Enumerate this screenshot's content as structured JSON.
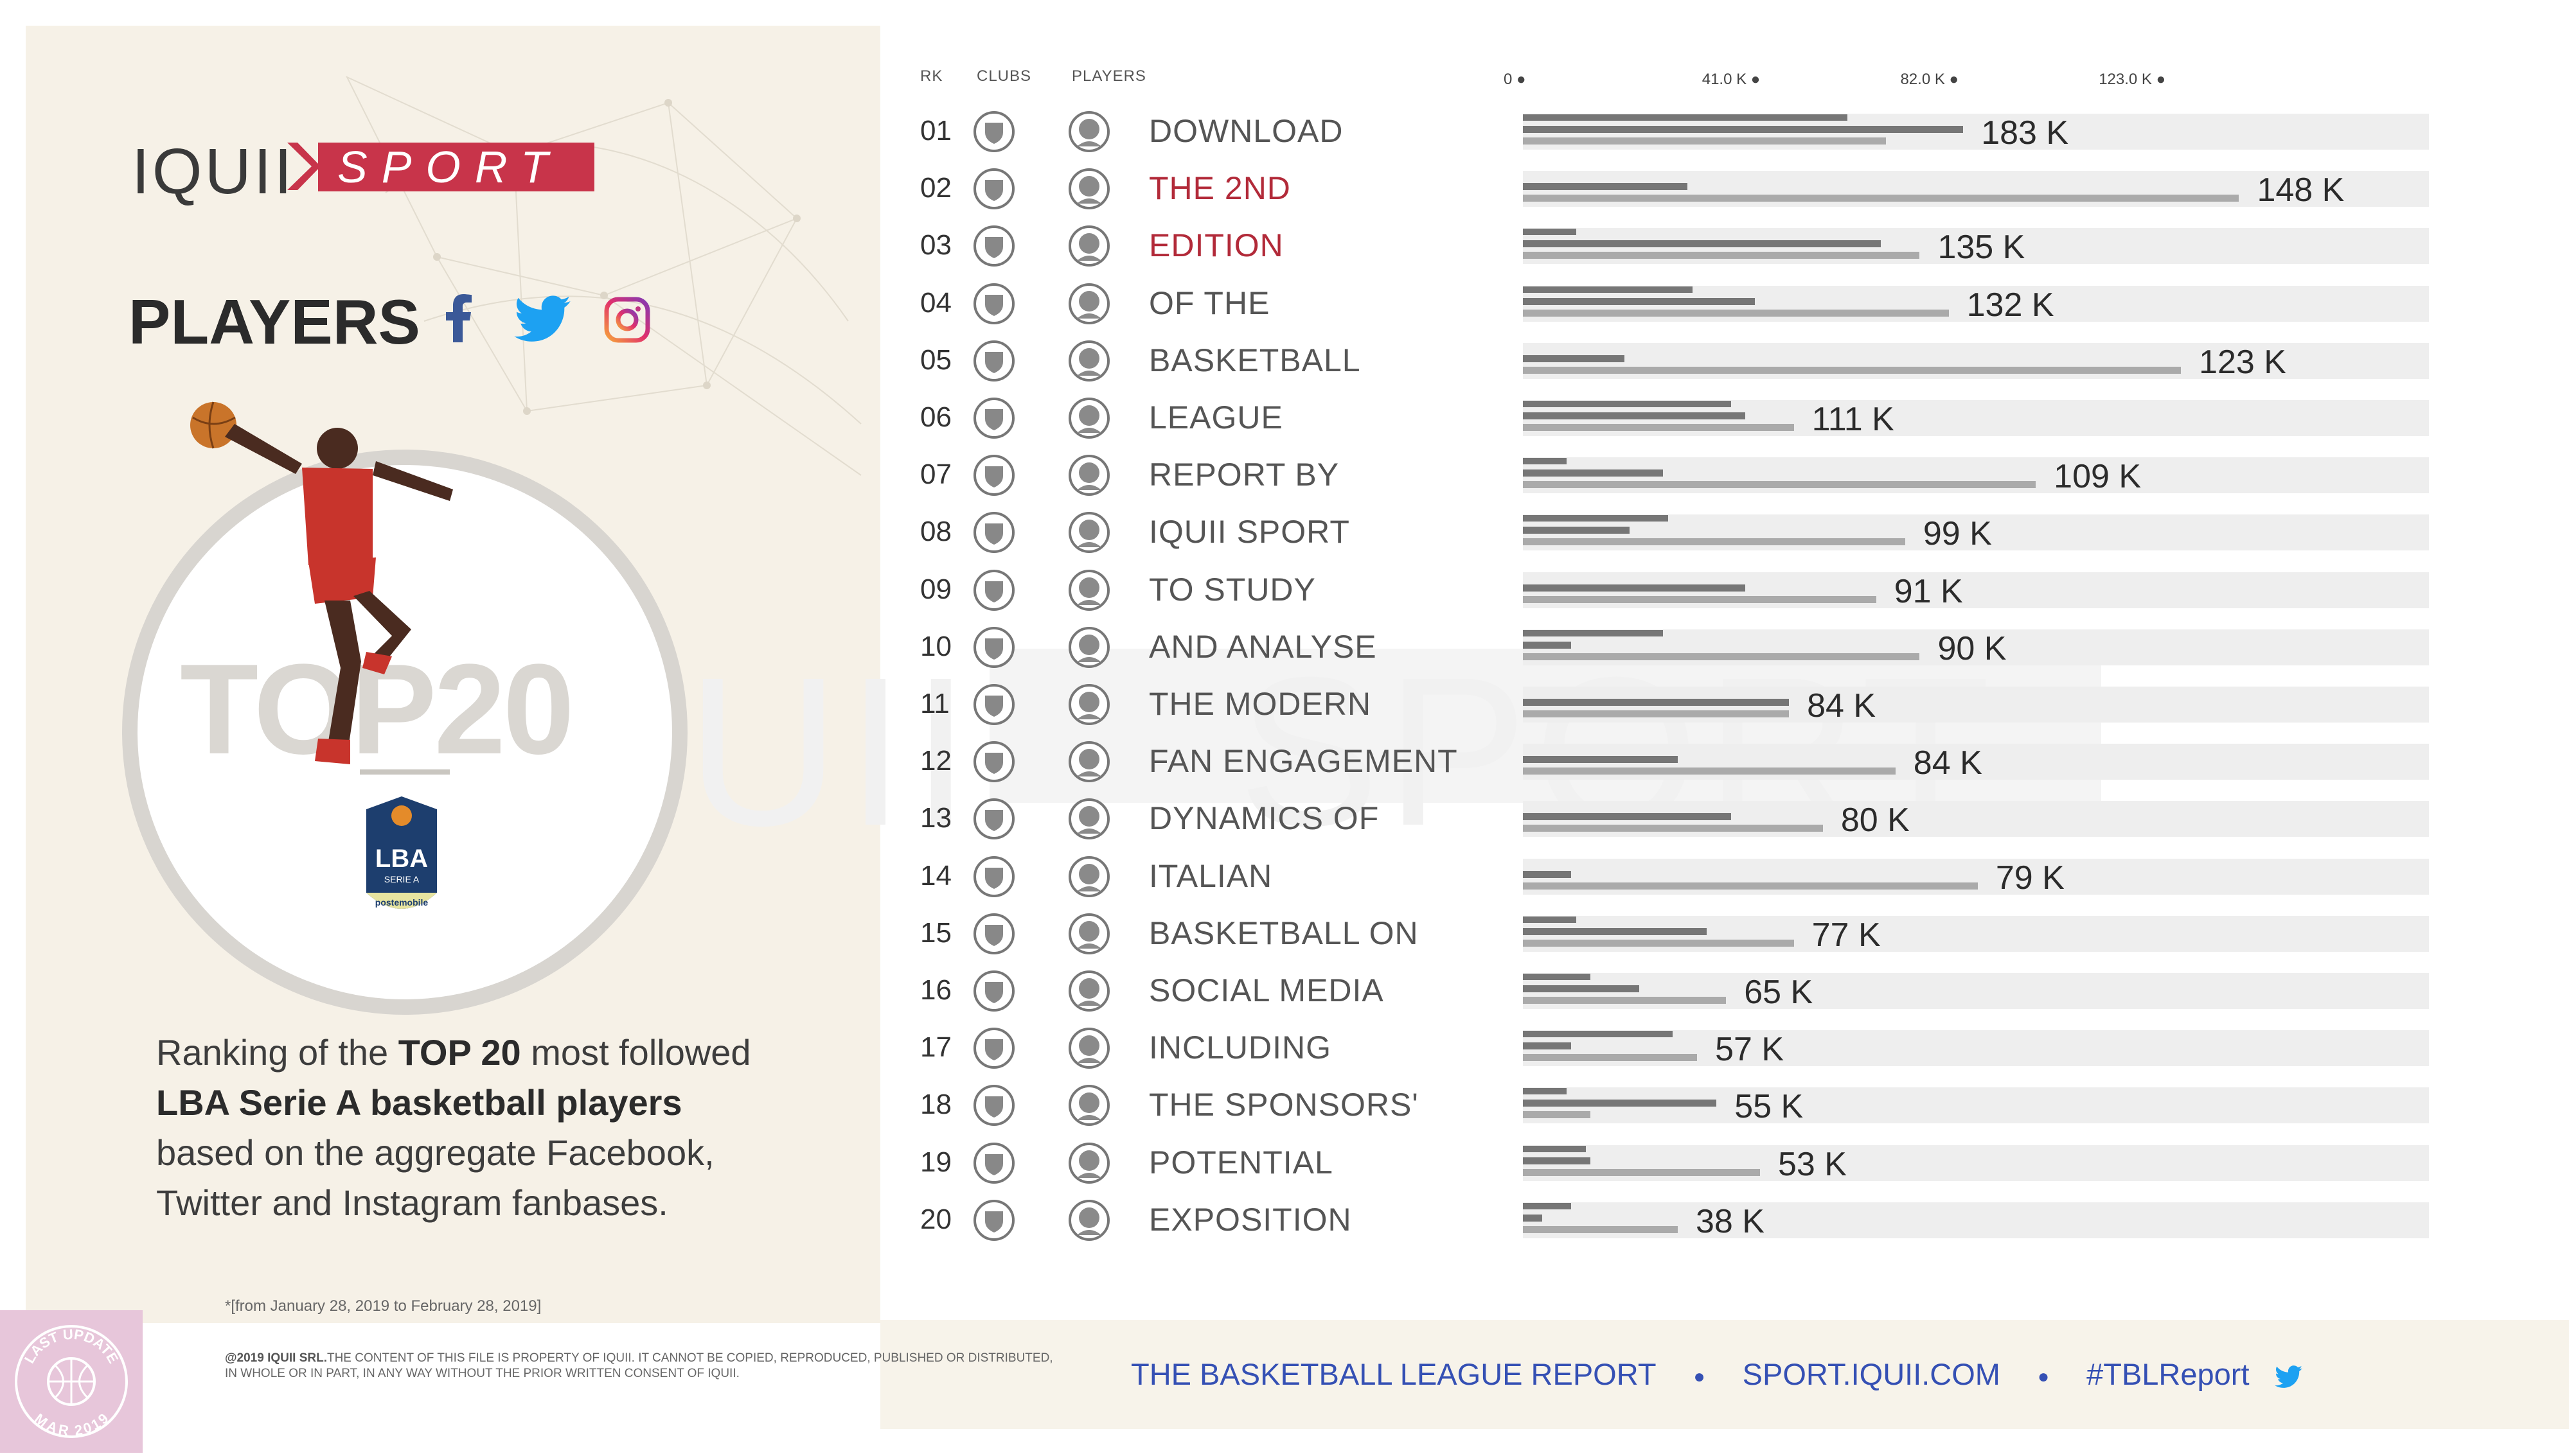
{
  "brand": {
    "left": "IQUII",
    "right": "SPORT"
  },
  "title": "PLAYERS",
  "social_icons": [
    "facebook-icon",
    "twitter-icon",
    "instagram-icon"
  ],
  "badge": {
    "top20": "TOP20",
    "logo_text": "LBA",
    "logo_sub": "SERIE A",
    "logo_sponsor": "postemobile"
  },
  "description": {
    "part1": "Ranking of the ",
    "bold1": "TOP 20",
    "part2": " most followed ",
    "bold2": "LBA Serie A basketball players",
    "part3": " based on the aggregate Facebook, Twitter and Instagram fanbases."
  },
  "footnote": "*[from January 28, 2019 to February 28, 2019]",
  "copyright": {
    "bold": "@2019 IQUII SRL.",
    "text": "THE CONTENT OF THIS FILE IS PROPERTY OF IQUII. IT CANNOT BE COPIED, REPRODUCED, PUBLISHED OR DISTRIBUTED, IN WHOLE OR IN PART, IN ANY WAY WITHOUT THE PRIOR WRITTEN CONSENT OF IQUII."
  },
  "stamp": {
    "top": "LAST UPDATE",
    "bottom": "MAR 2019"
  },
  "footer": {
    "report": "THE BASKETBALL LEAGUE REPORT",
    "site": "SPORT.IQUII.COM",
    "hashtag": "#TBLReport"
  },
  "headers": {
    "rank": "RK",
    "clubs": "CLUBS",
    "players": "PLAYERS"
  },
  "colors": {
    "accent": "#c8344a",
    "highlight_text": "#b22a39",
    "footer_blue": "#3550b4",
    "bar_dark": "#767676",
    "bar_light": "#aaaaaa",
    "track": "#eeeeee"
  },
  "chart_data": {
    "type": "bar",
    "axis_ticks": [
      "0",
      "41.0 K",
      "82.0 K",
      "123.0 K"
    ],
    "xlim": [
      0,
      183
    ],
    "value_unit": "K",
    "categories": [
      "01",
      "02",
      "03",
      "04",
      "05",
      "06",
      "07",
      "08",
      "09",
      "10",
      "11",
      "12",
      "13",
      "14",
      "15",
      "16",
      "17",
      "18",
      "19",
      "20"
    ],
    "labels": [
      "DOWNLOAD",
      "THE 2ND",
      "EDITION",
      "OF THE",
      "BASKETBALL",
      "LEAGUE",
      "REPORT BY",
      "IQUII SPORT",
      "TO STUDY",
      "AND ANALYSE",
      "THE MODERN",
      "FAN ENGAGEMENT",
      "DYNAMICS OF",
      "ITALIAN",
      "BASKETBALL ON",
      "SOCIAL MEDIA",
      "INCLUDING",
      "THE SPONSORS'",
      "POTENTIAL",
      "EXPOSITION"
    ],
    "highlighted": [
      1,
      2
    ],
    "values": [
      183,
      148,
      135,
      132,
      123,
      111,
      109,
      99,
      91,
      90,
      84,
      84,
      80,
      79,
      77,
      65,
      57,
      55,
      53,
      38
    ],
    "value_labels": [
      "183 K",
      "148 K",
      "135 K",
      "132 K",
      "123 K",
      "111 K",
      "109 K",
      "99 K",
      "91 K",
      "90 K",
      "84 K",
      "84 K",
      "80 K",
      "79 K",
      "77 K",
      "65 K",
      "57 K",
      "55 K",
      "53 K",
      "38 K"
    ],
    "series": [
      {
        "values": [
          67,
          0,
          11,
          35,
          0,
          43,
          9,
          30,
          0,
          29,
          0,
          0,
          0,
          0,
          11,
          14,
          31,
          9,
          13,
          10
        ]
      },
      {
        "values": [
          91,
          34,
          74,
          48,
          21,
          46,
          29,
          22,
          46,
          10,
          55,
          32,
          43,
          10,
          38,
          24,
          10,
          40,
          14,
          4
        ]
      },
      {
        "values": [
          75,
          148,
          82,
          88,
          136,
          56,
          106,
          79,
          73,
          82,
          55,
          77,
          62,
          94,
          56,
          42,
          36,
          14,
          49,
          32
        ]
      }
    ]
  }
}
